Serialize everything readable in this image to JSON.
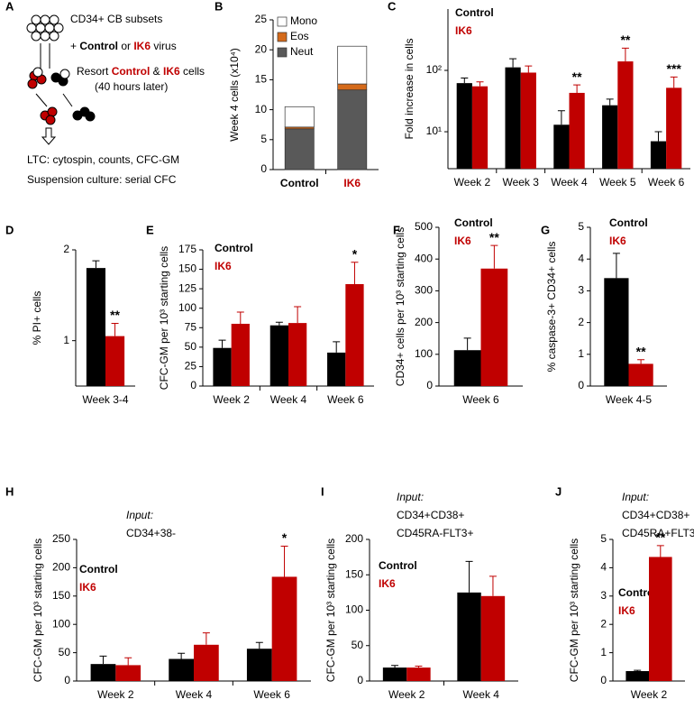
{
  "panel_a": {
    "label": "A",
    "lines": [
      [
        "CD34+ CB subsets"
      ],
      [
        "+ ",
        "Control",
        " or ",
        "IK6",
        " virus"
      ],
      [
        "Resort ",
        "Control",
        " & ",
        "IK6",
        " cells"
      ],
      [
        "(40 hours later)"
      ],
      [
        "LTC: cytospin, counts, CFC-GM"
      ],
      [
        "Suspension culture: serial CFC"
      ]
    ]
  },
  "chart_data": [
    {
      "type": "stacked_bar",
      "label": "B",
      "ylabel": "Week 4 cells (x10⁴)",
      "categories": [
        "Control",
        "IK6"
      ],
      "category_colors": [
        "#000000",
        "#c00000"
      ],
      "series": [
        {
          "name": "Neut",
          "color": "#595959",
          "values": [
            6.8,
            13.3
          ]
        },
        {
          "name": "Eos",
          "color": "#d46a1a",
          "values": [
            0.3,
            1.0
          ]
        },
        {
          "name": "Mono",
          "color": "#ffffff",
          "values": [
            3.4,
            6.3
          ]
        }
      ],
      "ylim": [
        0,
        25
      ],
      "yticks": [
        0,
        5,
        10,
        15,
        20,
        25
      ]
    },
    {
      "type": "bar",
      "label": "C",
      "ylabel": "Fold increase in cells",
      "log": true,
      "categories": [
        "Week 2",
        "Week 3",
        "Week 4",
        "Week 5",
        "Week 6"
      ],
      "series": [
        {
          "name": "Control",
          "color": "#000000",
          "values": [
            62,
            112,
            13,
            27,
            7
          ],
          "errors": [
            13,
            43,
            9,
            7,
            3
          ]
        },
        {
          "name": "IK6",
          "color": "#c00000",
          "values": [
            55,
            92,
            43,
            140,
            52
          ],
          "errors": [
            10,
            26,
            15,
            90,
            26
          ]
        }
      ],
      "significance": [
        null,
        null,
        "**",
        "**",
        "***"
      ],
      "ylim": [
        2.5,
        1000
      ],
      "yticks": [
        {
          "value": 10,
          "label": "10¹"
        },
        {
          "value": 100,
          "label": "10²"
        }
      ]
    },
    {
      "type": "bar",
      "label": "D",
      "ylabel": "% PI+ cells",
      "categories": [
        "Week 3-4"
      ],
      "series": [
        {
          "color": "#000000",
          "values": [
            1.8
          ],
          "errors": [
            0.08
          ]
        },
        {
          "color": "#c00000",
          "values": [
            1.05
          ],
          "errors": [
            0.14
          ]
        }
      ],
      "significance": [
        "**"
      ],
      "ylim": [
        0.5,
        2
      ],
      "yticks": [
        1,
        2
      ]
    },
    {
      "type": "bar",
      "label": "E",
      "ylabel": "CFC-GM per 10³ starting cells",
      "categories": [
        "Week 2",
        "Week 4",
        "Week 6"
      ],
      "series": [
        {
          "name": "Control",
          "color": "#000000",
          "values": [
            49,
            78,
            43
          ],
          "errors": [
            10,
            4,
            14
          ]
        },
        {
          "name": "IK6",
          "color": "#c00000",
          "values": [
            80,
            81,
            131
          ],
          "errors": [
            15,
            21,
            28
          ]
        }
      ],
      "significance": [
        null,
        null,
        "*"
      ],
      "ylim": [
        0,
        175
      ],
      "yticks": [
        0,
        25,
        50,
        75,
        100,
        125,
        150,
        175
      ]
    },
    {
      "type": "bar",
      "label": "F",
      "ylabel": "CD34+ cells per 10³ starting cells",
      "categories": [
        "Week 6"
      ],
      "series": [
        {
          "name": "Control",
          "color": "#000000",
          "values": [
            113
          ],
          "errors": [
            38
          ]
        },
        {
          "name": "IK6",
          "color": "#c00000",
          "values": [
            370
          ],
          "errors": [
            73
          ]
        }
      ],
      "significance": [
        "**"
      ],
      "ylim": [
        0,
        500
      ],
      "yticks": [
        0,
        100,
        200,
        300,
        400,
        500
      ]
    },
    {
      "type": "bar",
      "label": "G",
      "ylabel": "% caspase-3+ CD34+ cells",
      "categories": [
        "Week 4-5"
      ],
      "series": [
        {
          "name": "Control",
          "color": "#000000",
          "values": [
            3.4
          ],
          "errors": [
            0.78
          ]
        },
        {
          "name": "IK6",
          "color": "#c00000",
          "values": [
            0.7
          ],
          "errors": [
            0.13
          ]
        }
      ],
      "significance": [
        "**"
      ],
      "ylim": [
        0,
        5
      ],
      "yticks": [
        0,
        1,
        2,
        3,
        4,
        5
      ]
    },
    {
      "type": "bar",
      "label": "H",
      "input": [
        "Input:",
        "CD34+38-"
      ],
      "ylabel": "CFC-GM per 10³ starting cells",
      "categories": [
        "Week 2",
        "Week 4",
        "Week 6"
      ],
      "series": [
        {
          "name": "Control",
          "color": "#000000",
          "values": [
            30,
            39,
            57
          ],
          "errors": [
            14,
            10,
            11
          ]
        },
        {
          "name": "IK6",
          "color": "#c00000",
          "values": [
            28,
            64,
            184
          ],
          "errors": [
            13,
            21,
            54
          ]
        }
      ],
      "significance": [
        null,
        null,
        "*"
      ],
      "ylim": [
        0,
        250
      ],
      "yticks": [
        0,
        50,
        100,
        150,
        200,
        250
      ]
    },
    {
      "type": "bar",
      "label": "I",
      "input": [
        "Input:",
        "CD34+CD38+",
        "CD45RA-FLT3+"
      ],
      "ylabel": "CFC-GM per 10³ starting cells",
      "categories": [
        "Week 2",
        "Week 4"
      ],
      "series": [
        {
          "name": "Control",
          "color": "#000000",
          "values": [
            19,
            125
          ],
          "errors": [
            3,
            44
          ]
        },
        {
          "name": "IK6",
          "color": "#c00000",
          "values": [
            19,
            120
          ],
          "errors": [
            2,
            28
          ]
        }
      ],
      "ylim": [
        0,
        200
      ],
      "yticks": [
        0,
        50,
        100,
        150,
        200
      ]
    },
    {
      "type": "bar",
      "label": "J",
      "input": [
        "Input:",
        "CD34+CD38+",
        "CD45RA+FLT3+"
      ],
      "ylabel": "CFC-GM per 10³ starting cells",
      "categories": [
        "Week 2"
      ],
      "series": [
        {
          "name": "Control",
          "color": "#000000",
          "values": [
            0.35
          ],
          "errors": [
            0.03
          ]
        },
        {
          "name": "IK6",
          "color": "#c00000",
          "values": [
            4.38
          ],
          "errors": [
            0.4
          ]
        }
      ],
      "significance": [
        "**"
      ],
      "ylim": [
        0,
        5
      ],
      "yticks": [
        0,
        1,
        2,
        3,
        4,
        5
      ]
    }
  ]
}
